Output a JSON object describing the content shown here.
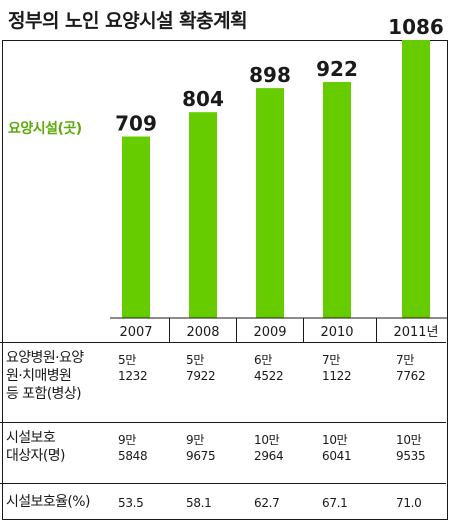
{
  "title": "정부의 노인 요양시설 확충계획",
  "series_label": "요양시설(곳)",
  "chart_data": {
    "type": "bar",
    "title": "정부의 노인 요양시설 확충계획",
    "categories": [
      "2007",
      "2008",
      "2009",
      "2010",
      "2011년"
    ],
    "series": [
      {
        "name": "요양시설(곳)",
        "values": [
          709,
          804,
          898,
          922,
          1086
        ]
      }
    ],
    "value_labels": [
      "709",
      "804",
      "898",
      "922",
      "1086"
    ],
    "bar_color": "#66cc00",
    "ylim": [
      0,
      1086
    ],
    "grid": false,
    "legend": "left"
  },
  "table": {
    "rows": [
      {
        "label": "요양병원·요양\n원·치매병원\n등 포함(병상)",
        "values": [
          "5만\n1232",
          "5만\n7922",
          "6만\n4522",
          "7만\n1122",
          "7만\n7762"
        ]
      },
      {
        "label": "시설보호\n대상자(명)",
        "values": [
          "9만\n5848",
          "9만\n9675",
          "10만\n2964",
          "10만\n6041",
          "10만\n9535"
        ]
      },
      {
        "label": "시설보호율(%)",
        "values": [
          "53.5",
          "58.1",
          "62.7",
          "67.1",
          "71.0"
        ]
      }
    ]
  }
}
